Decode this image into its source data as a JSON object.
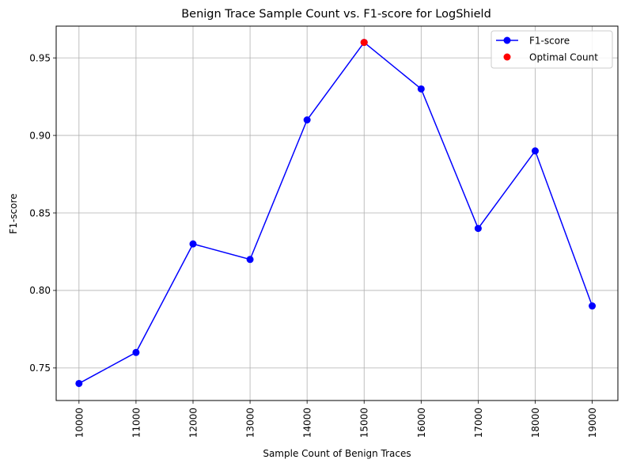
{
  "chart_data": {
    "type": "line",
    "title": "Benign Trace Sample Count vs. F1-score for LogShield",
    "xlabel": "Sample Count of Benign Traces",
    "ylabel": "F1-score",
    "x": [
      10000,
      11000,
      12000,
      13000,
      14000,
      15000,
      16000,
      17000,
      18000,
      19000
    ],
    "x_tick_labels": [
      "10000",
      "11000",
      "12000",
      "13000",
      "14000",
      "15000",
      "16000",
      "17000",
      "18000",
      "19000"
    ],
    "y_ticks": [
      0.75,
      0.8,
      0.85,
      0.9,
      0.95
    ],
    "y_tick_labels": [
      "0.75",
      "0.80",
      "0.85",
      "0.90",
      "0.95"
    ],
    "xlim": [
      9600,
      19450
    ],
    "ylim": [
      0.729,
      0.9705
    ],
    "grid": true,
    "legend_position": "top-right",
    "series": [
      {
        "name": "F1-score",
        "color": "#0000ff",
        "marker": "circle",
        "values": [
          0.74,
          0.76,
          0.83,
          0.82,
          0.91,
          0.96,
          0.93,
          0.84,
          0.89,
          0.79
        ]
      },
      {
        "name": "Optimal Count",
        "color": "#ff0000",
        "marker": "circle",
        "points": [
          {
            "x": 15000,
            "y": 0.96
          }
        ]
      }
    ]
  }
}
